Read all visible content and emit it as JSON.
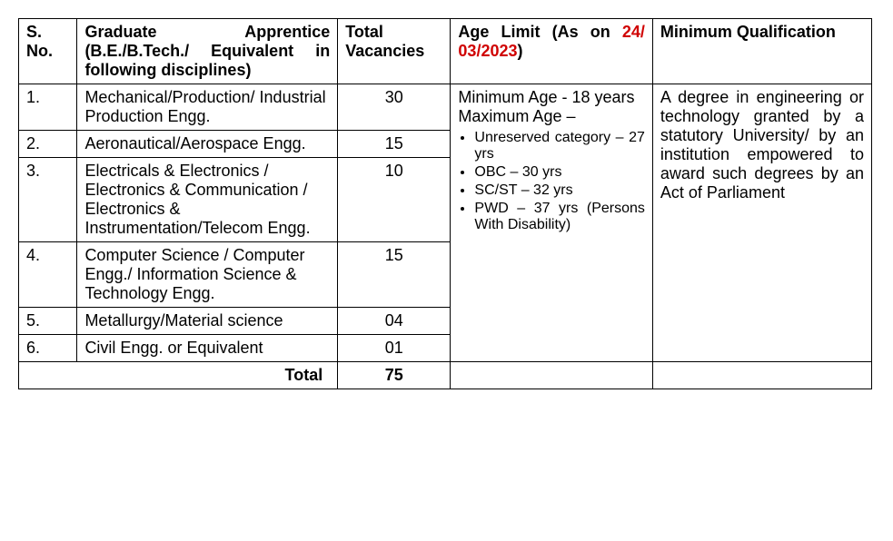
{
  "headers": {
    "sno": "S. No.",
    "discipline": "Graduate Apprentice (B.E./B.Tech./ Equivalent in following disciplines)",
    "vacancies": "Total Vacancies",
    "age_prefix": "Age Limit (As on ",
    "age_date": "24/ 03/2023",
    "age_suffix": ")",
    "qualification": "Minimum Qualification"
  },
  "rows": [
    {
      "sno": "1.",
      "discipline": "Mechanical/Production/ Industrial Production Engg.",
      "vacancies": "30"
    },
    {
      "sno": "2.",
      "discipline": "Aeronautical/Aerospace Engg.",
      "vacancies": "15"
    },
    {
      "sno": "3.",
      "discipline": "Electricals & Electronics / Electronics & Communication / Electronics & Instrumentation/Telecom Engg.",
      "vacancies": "10"
    },
    {
      "sno": "4.",
      "discipline": "Computer Science / Computer Engg./ Information Science & Technology Engg.",
      "vacancies": "15"
    },
    {
      "sno": "5.",
      "discipline": "Metallurgy/Material science",
      "vacancies": "04"
    },
    {
      "sno": "6.",
      "discipline": "Civil Engg. or Equivalent",
      "vacancies": "01"
    }
  ],
  "age": {
    "min_line": "Minimum Age - 18 years",
    "max_line": "Maximum Age –",
    "bullets": [
      "Unreserved category – 27 yrs",
      "OBC – 30 yrs",
      "SC/ST – 32 yrs",
      "PWD – 37 yrs (Persons With Disability)"
    ]
  },
  "qualification_text": "A degree in engineering or technology granted by a statutory University/ by an institution empowered to award such degrees by an Act of Parliament",
  "total": {
    "label": "Total",
    "value": "75"
  }
}
